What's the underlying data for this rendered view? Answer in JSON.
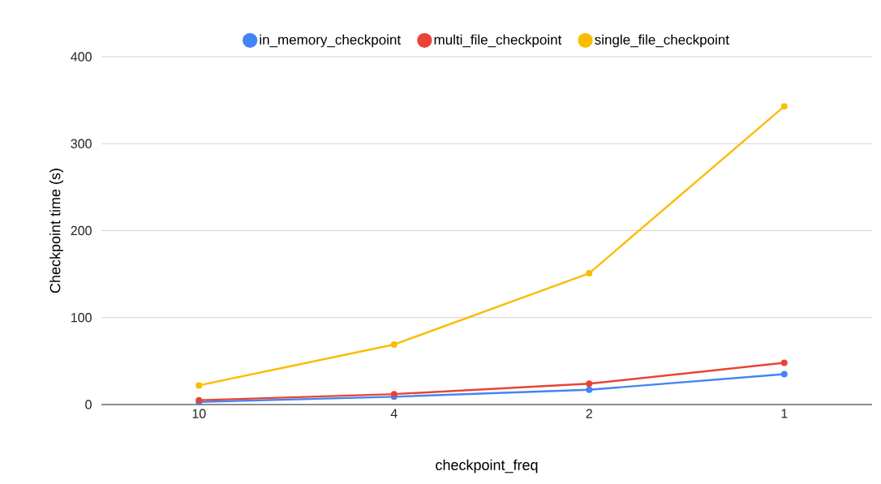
{
  "chart_data": {
    "type": "line",
    "xlabel": "checkpoint_freq",
    "ylabel": "Checkpoint time (s)",
    "categories": [
      "10",
      "4",
      "2",
      "1"
    ],
    "series": [
      {
        "name": "in_memory_checkpoint",
        "color": "#4285f4",
        "values": [
          3,
          9,
          17,
          35
        ]
      },
      {
        "name": "multi_file_checkpoint",
        "color": "#ea4335",
        "values": [
          5,
          12,
          24,
          48
        ]
      },
      {
        "name": "single_file_checkpoint",
        "color": "#fbbc04",
        "values": [
          22,
          69,
          151,
          343
        ]
      }
    ],
    "ylim": [
      0,
      400
    ],
    "yticks": [
      0,
      100,
      200,
      300,
      400
    ],
    "grid": "y",
    "legend": "top",
    "marker": "circle",
    "line_style": "solid"
  }
}
